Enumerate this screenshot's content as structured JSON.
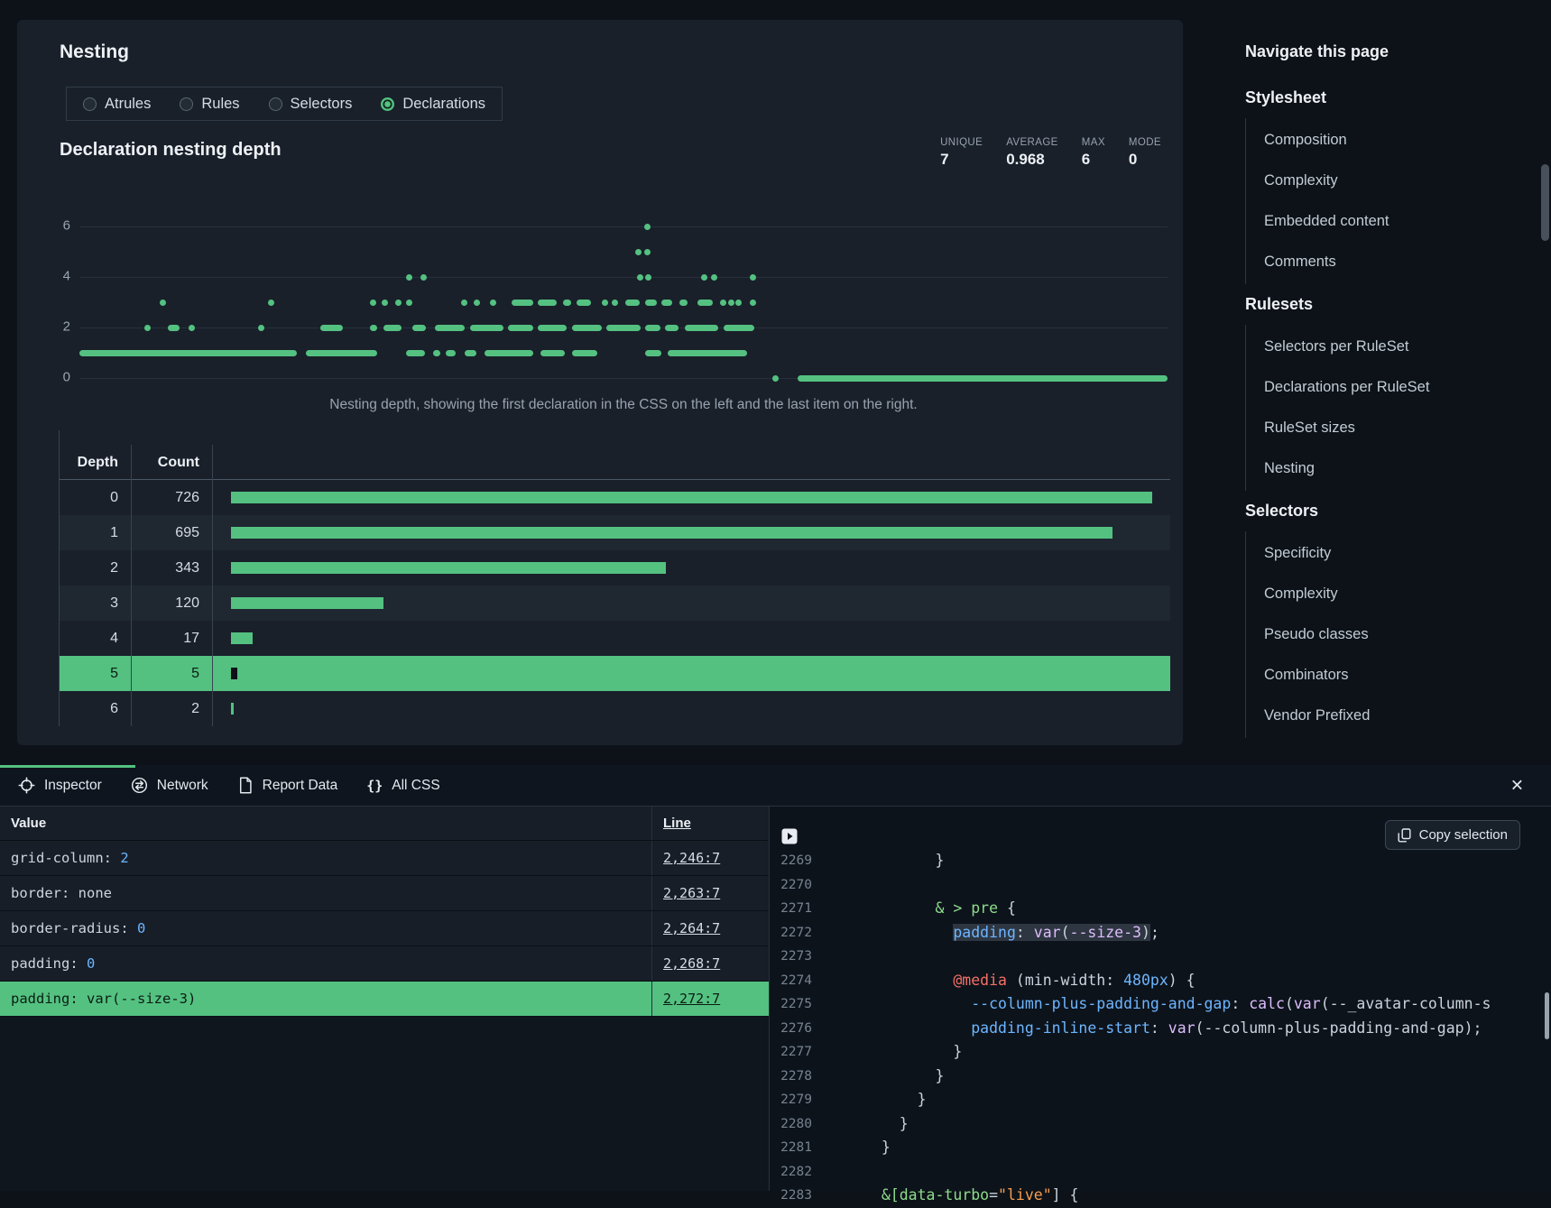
{
  "panel": {
    "title": "Nesting",
    "filter_options": [
      {
        "label": "Atrules",
        "selected": false
      },
      {
        "label": "Rules",
        "selected": false
      },
      {
        "label": "Selectors",
        "selected": false
      },
      {
        "label": "Declarations",
        "selected": true
      }
    ],
    "chart_title": "Declaration nesting depth",
    "caption": "Nesting depth, showing the first declaration in the CSS on the left and the last item on the right."
  },
  "chart_data": [
    {
      "type": "scatter",
      "title": "Declaration nesting depth",
      "stats": [
        {
          "label": "UNIQUE",
          "value": "7"
        },
        {
          "label": "AVERAGE",
          "value": "0.968"
        },
        {
          "label": "MAX",
          "value": "6"
        },
        {
          "label": "MODE",
          "value": "0"
        }
      ],
      "ylim": [
        0,
        6
      ],
      "y_ticks": [
        6,
        4,
        2,
        0
      ],
      "x_meaning": "declaration position in the CSS source, first on the left to last on the right",
      "point_color": "#54C181",
      "runs_depth_startfrac_endfrac": [
        [
          6,
          0.519,
          0.519
        ],
        [
          5,
          0.511,
          0.514
        ],
        [
          5,
          0.519,
          0.523
        ],
        [
          4,
          0.3,
          0.303
        ],
        [
          4,
          0.313,
          0.316
        ],
        [
          4,
          0.512,
          0.516
        ],
        [
          4,
          0.52,
          0.525
        ],
        [
          4,
          0.571,
          0.574
        ],
        [
          4,
          0.58,
          0.584
        ],
        [
          4,
          0.616,
          0.619
        ],
        [
          3,
          0.074,
          0.074
        ],
        [
          3,
          0.173,
          0.173
        ],
        [
          3,
          0.267,
          0.267
        ],
        [
          3,
          0.278,
          0.278
        ],
        [
          3,
          0.29,
          0.29
        ],
        [
          3,
          0.3,
          0.3
        ],
        [
          3,
          0.351,
          0.351
        ],
        [
          3,
          0.362,
          0.362
        ],
        [
          3,
          0.377,
          0.377
        ],
        [
          3,
          0.397,
          0.417
        ],
        [
          3,
          0.421,
          0.439
        ],
        [
          3,
          0.444,
          0.452
        ],
        [
          3,
          0.457,
          0.47
        ],
        [
          3,
          0.48,
          0.48
        ],
        [
          3,
          0.489,
          0.494
        ],
        [
          3,
          0.502,
          0.515
        ],
        [
          3,
          0.52,
          0.531
        ],
        [
          3,
          0.535,
          0.545
        ],
        [
          3,
          0.551,
          0.559
        ],
        [
          3,
          0.568,
          0.582
        ],
        [
          3,
          0.589,
          0.589
        ],
        [
          3,
          0.596,
          0.596
        ],
        [
          3,
          0.603,
          0.603
        ],
        [
          3,
          0.616,
          0.616
        ],
        [
          2,
          0.06,
          0.06
        ],
        [
          2,
          0.081,
          0.092
        ],
        [
          2,
          0.1,
          0.1
        ],
        [
          2,
          0.164,
          0.164
        ],
        [
          2,
          0.221,
          0.242
        ],
        [
          2,
          0.267,
          0.274
        ],
        [
          2,
          0.279,
          0.296
        ],
        [
          2,
          0.306,
          0.318
        ],
        [
          2,
          0.327,
          0.354
        ],
        [
          2,
          0.359,
          0.39
        ],
        [
          2,
          0.394,
          0.417
        ],
        [
          2,
          0.421,
          0.448
        ],
        [
          2,
          0.453,
          0.48
        ],
        [
          2,
          0.484,
          0.516
        ],
        [
          2,
          0.52,
          0.534
        ],
        [
          2,
          0.538,
          0.551
        ],
        [
          2,
          0.556,
          0.587
        ],
        [
          2,
          0.592,
          0.62
        ],
        [
          1,
          0.0,
          0.2
        ],
        [
          1,
          0.208,
          0.274
        ],
        [
          1,
          0.3,
          0.318
        ],
        [
          1,
          0.325,
          0.332
        ],
        [
          1,
          0.337,
          0.346
        ],
        [
          1,
          0.354,
          0.365
        ],
        [
          1,
          0.372,
          0.417
        ],
        [
          1,
          0.424,
          0.446
        ],
        [
          1,
          0.453,
          0.476
        ],
        [
          1,
          0.52,
          0.535
        ],
        [
          1,
          0.541,
          0.614
        ],
        [
          0,
          0.637,
          0.637
        ],
        [
          0,
          0.66,
          1.0
        ]
      ]
    },
    {
      "type": "bar",
      "orientation": "horizontal",
      "headers": [
        "Depth",
        "Count"
      ],
      "categories": [
        0,
        1,
        2,
        3,
        4,
        5,
        6
      ],
      "values": [
        726,
        695,
        343,
        120,
        17,
        5,
        2
      ],
      "highlighted_category": 5,
      "bar_color": "#54C181"
    }
  ],
  "sidebar": {
    "title": "Navigate this page",
    "sections": [
      {
        "heading": "Stylesheet",
        "items": [
          "Composition",
          "Complexity",
          "Embedded content",
          "Comments"
        ]
      },
      {
        "heading": "Rulesets",
        "items": [
          "Selectors per RuleSet",
          "Declarations per RuleSet",
          "RuleSet sizes",
          "Nesting"
        ]
      },
      {
        "heading": "Selectors",
        "items": [
          "Specificity",
          "Complexity",
          "Pseudo classes",
          "Combinators",
          "Vendor Prefixed"
        ]
      }
    ]
  },
  "devtools": {
    "tabs": [
      {
        "label": "Inspector",
        "icon": "target-icon",
        "active": true
      },
      {
        "label": "Network",
        "icon": "network-icon",
        "active": false
      },
      {
        "label": "Report Data",
        "icon": "document-icon",
        "active": false
      },
      {
        "label": "All CSS",
        "icon": "braces-icon",
        "active": false
      }
    ],
    "close_icon": "✕",
    "inspector": {
      "value_header": "Value",
      "line_header": "Line",
      "rows": [
        {
          "property": "grid-column",
          "value": "2",
          "value_style": "number",
          "line": "2,246:7",
          "highlighted": false
        },
        {
          "property": "border",
          "value": "none",
          "value_style": "plain",
          "line": "2,263:7",
          "highlighted": false
        },
        {
          "property": "border-radius",
          "value": "0",
          "value_style": "number",
          "line": "2,264:7",
          "highlighted": false
        },
        {
          "property": "padding",
          "value": "0",
          "value_style": "number",
          "line": "2,268:7",
          "highlighted": false
        },
        {
          "property": "padding",
          "value": "var(--size-3)",
          "value_style": "plain",
          "line": "2,272:7",
          "highlighted": true
        }
      ]
    },
    "code_viewer": {
      "copy_label": "Copy selection",
      "lines": [
        {
          "n": "2269",
          "toks": [
            {
              "t": "        }",
              "c": "d"
            }
          ]
        },
        {
          "n": "2270",
          "toks": []
        },
        {
          "n": "2271",
          "toks": [
            {
              "t": "        ",
              "c": "d"
            },
            {
              "t": "& > pre",
              "c": "g"
            },
            {
              "t": " {",
              "c": "d"
            }
          ]
        },
        {
          "n": "2272",
          "toks": [
            {
              "t": "          ",
              "c": "d"
            },
            {
              "t": "padding",
              "c": "b",
              "sel": true
            },
            {
              "t": ": ",
              "c": "d",
              "sel": true
            },
            {
              "t": "var",
              "c": "p",
              "sel": true
            },
            {
              "t": "(",
              "c": "d",
              "sel": true
            },
            {
              "t": "--size-3",
              "c": "p",
              "sel": true
            },
            {
              "t": ")",
              "c": "d",
              "sel": true
            },
            {
              "t": ";",
              "c": "d"
            }
          ]
        },
        {
          "n": "2273",
          "toks": []
        },
        {
          "n": "2274",
          "toks": [
            {
              "t": "          ",
              "c": "d"
            },
            {
              "t": "@media",
              "c": "r"
            },
            {
              "t": " (min-width: ",
              "c": "d"
            },
            {
              "t": "480px",
              "c": "b"
            },
            {
              "t": ") {",
              "c": "d"
            }
          ]
        },
        {
          "n": "2275",
          "toks": [
            {
              "t": "            ",
              "c": "d"
            },
            {
              "t": "--column-plus-padding-and-gap",
              "c": "b"
            },
            {
              "t": ": ",
              "c": "d"
            },
            {
              "t": "calc",
              "c": "p"
            },
            {
              "t": "(",
              "c": "d"
            },
            {
              "t": "var",
              "c": "p"
            },
            {
              "t": "(",
              "c": "d"
            },
            {
              "t": "--_avatar-column-s",
              "c": "d"
            }
          ]
        },
        {
          "n": "2276",
          "toks": [
            {
              "t": "            ",
              "c": "d"
            },
            {
              "t": "padding-inline-start",
              "c": "b"
            },
            {
              "t": ": ",
              "c": "d"
            },
            {
              "t": "var",
              "c": "p"
            },
            {
              "t": "(--column-plus-padding-and-gap);",
              "c": "d"
            }
          ]
        },
        {
          "n": "2277",
          "toks": [
            {
              "t": "          }",
              "c": "d"
            }
          ]
        },
        {
          "n": "2278",
          "toks": [
            {
              "t": "        }",
              "c": "d"
            }
          ]
        },
        {
          "n": "2279",
          "toks": [
            {
              "t": "      }",
              "c": "d"
            }
          ]
        },
        {
          "n": "2280",
          "toks": [
            {
              "t": "    }",
              "c": "d"
            }
          ]
        },
        {
          "n": "2281",
          "toks": [
            {
              "t": "  }",
              "c": "d"
            }
          ]
        },
        {
          "n": "2282",
          "toks": []
        },
        {
          "n": "2283",
          "toks": [
            {
              "t": "  ",
              "c": "d"
            },
            {
              "t": "&[data-turbo",
              "c": "g"
            },
            {
              "t": "=",
              "c": "d"
            },
            {
              "t": "\"live\"",
              "c": "o"
            },
            {
              "t": "] {",
              "c": "d"
            }
          ]
        }
      ]
    }
  },
  "colors": {
    "accent_green": "#54C181",
    "panel_bg": "#19202A",
    "page_bg": "#0C1218",
    "code_blue": "#6CB6FF",
    "code_green": "#8DDB8C",
    "code_red": "#F47067",
    "code_purple": "#DCBDFB",
    "code_orange": "#F69D50"
  }
}
